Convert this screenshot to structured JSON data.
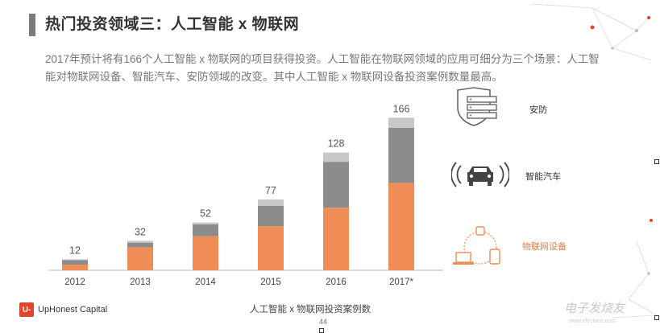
{
  "header": {
    "title": "热门投资领域三：人工智能 x 物联网"
  },
  "description": "2017年预计将有166个人工智能 x 物联网的项目获得投资。人工智能在物联网领域的应用可细分为三个场景：人工智能对物联网设备、智能汽车、安防领域的改变。其中人工智能 x 物联网设备投资案例数量最高。",
  "chart_data": {
    "type": "bar",
    "stacked": true,
    "categories": [
      "2012",
      "2013",
      "2014",
      "2015",
      "2016",
      "2017*"
    ],
    "totals": [
      12,
      32,
      52,
      77,
      128,
      166
    ],
    "series": [
      {
        "values": [
          6,
          25,
          37,
          48,
          68,
          95
        ],
        "color": "#f08c55"
      },
      {
        "values": [
          5,
          5,
          13,
          22,
          50,
          60
        ],
        "color": "#8c8c8c"
      },
      {
        "values": [
          1,
          2,
          2,
          7,
          10,
          11
        ],
        "color": "#c8c8c8"
      }
    ],
    "ylim": [
      0,
      175
    ],
    "grid": false,
    "legend": "right"
  },
  "legend": {
    "security": {
      "label": "安防",
      "icon": "shield-server-icon"
    },
    "auto": {
      "label": "智能汽车",
      "icon": "car-signal-icon"
    },
    "iot": {
      "label": "物联网设备",
      "icon": "device-network-icon"
    }
  },
  "footer": {
    "logo_mark": "U-",
    "logo_text": "UpHonest Capital",
    "caption": "人工智能 x 物联网投资案例数",
    "page": "44"
  },
  "watermark": {
    "text": "电子发烧友",
    "sub": "www.elecfans.com"
  },
  "colors": {
    "orange": "#f08c55",
    "dark_gray": "#8c8c8c",
    "light_gray": "#c8c8c8",
    "accent_red": "#e2452b"
  }
}
